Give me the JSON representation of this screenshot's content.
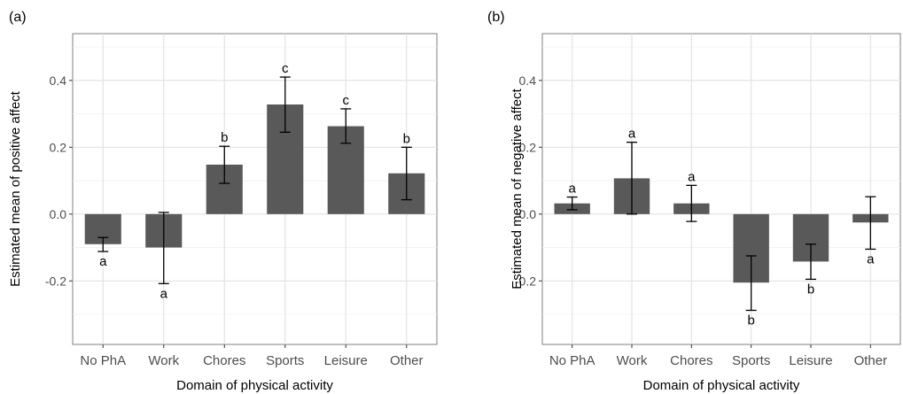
{
  "chart_data": [
    {
      "type": "bar",
      "panel_label": "(a)",
      "categories": [
        "No PhA",
        "Work",
        "Chores",
        "Sports",
        "Leisure",
        "Other"
      ],
      "values": [
        -0.09,
        -0.1,
        0.148,
        0.328,
        0.263,
        0.122
      ],
      "error_low": [
        -0.112,
        -0.208,
        0.092,
        0.245,
        0.212,
        0.043
      ],
      "error_high": [
        -0.07,
        0.005,
        0.203,
        0.41,
        0.315,
        0.2
      ],
      "significance_labels": [
        "a",
        "a",
        "b",
        "c",
        "c",
        "b"
      ],
      "xlabel": "Domain of physical activity",
      "ylabel": "Estimated mean of positive affect",
      "yticks": [
        -0.2,
        0.0,
        0.2,
        0.4
      ],
      "ytick_labels": [
        "-0.2",
        "0.0",
        "0.2",
        "0.4"
      ],
      "ylim": [
        -0.39,
        0.54
      ],
      "grid": true,
      "bar_color": "#595959"
    },
    {
      "type": "bar",
      "panel_label": "(b)",
      "categories": [
        "No PhA",
        "Work",
        "Chores",
        "Sports",
        "Leisure",
        "Other"
      ],
      "values": [
        0.032,
        0.107,
        0.032,
        -0.205,
        -0.142,
        -0.025
      ],
      "error_low": [
        0.013,
        0.0,
        -0.022,
        -0.288,
        -0.195,
        -0.105
      ],
      "error_high": [
        0.051,
        0.215,
        0.086,
        -0.125,
        -0.09,
        0.052
      ],
      "significance_labels": [
        "a",
        "a",
        "a",
        "b",
        "b",
        "a"
      ],
      "xlabel": "Domain of physical activity",
      "ylabel": "Estimated mean of negative affect",
      "yticks": [
        -0.2,
        0.0,
        0.2,
        0.4
      ],
      "ytick_labels": [
        "-0.2",
        "0.0",
        "0.2",
        "0.4"
      ],
      "ylim": [
        -0.39,
        0.54
      ],
      "grid": true,
      "bar_color": "#595959"
    }
  ]
}
